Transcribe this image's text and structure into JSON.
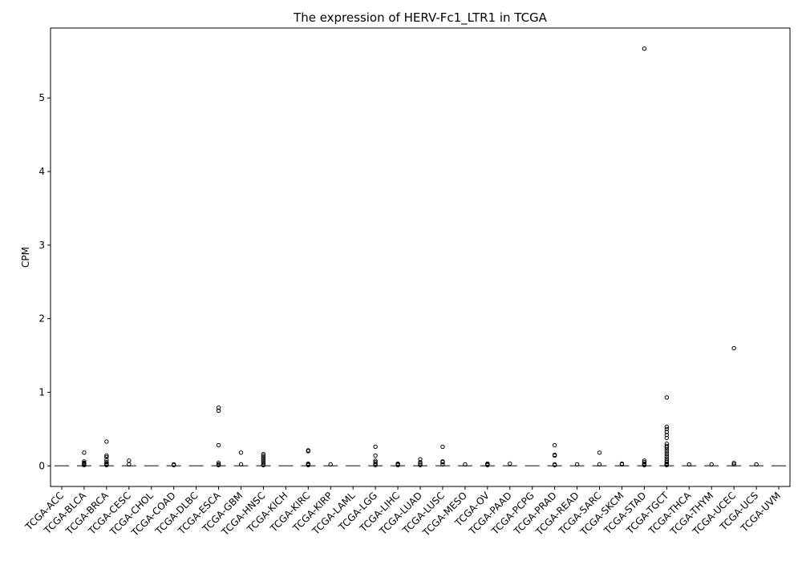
{
  "chart_data": {
    "type": "box",
    "title": "The expression of HERV-Fc1_LTR1 in TCGA",
    "xlabel": "",
    "ylabel": "CPM",
    "ylim": [
      -0.28,
      5.95
    ],
    "yticks": [
      0,
      1,
      2,
      3,
      4,
      5
    ],
    "grid": false,
    "categories": [
      "TCGA-ACC",
      "TCGA-BLCA",
      "TCGA-BRCA",
      "TCGA-CESC",
      "TCGA-CHOL",
      "TCGA-COAD",
      "TCGA-DLBC",
      "TCGA-ESCA",
      "TCGA-GBM",
      "TCGA-HNSC",
      "TCGA-KICH",
      "TCGA-KIRC",
      "TCGA-KIRP",
      "TCGA-LAML",
      "TCGA-LGG",
      "TCGA-LIHC",
      "TCGA-LUAD",
      "TCGA-LUSC",
      "TCGA-MESO",
      "TCGA-OV",
      "TCGA-PAAD",
      "TCGA-PCPG",
      "TCGA-PRAD",
      "TCGA-READ",
      "TCGA-SARC",
      "TCGA-SKCM",
      "TCGA-STAD",
      "TCGA-TGCT",
      "TCGA-THCA",
      "TCGA-THYM",
      "TCGA-UCEC",
      "TCGA-UCS",
      "TCGA-UVM"
    ],
    "median": [
      0,
      0,
      0,
      0,
      0,
      0,
      0,
      0,
      0,
      0,
      0,
      0,
      0,
      0,
      0,
      0,
      0,
      0,
      0,
      0,
      0,
      0,
      0,
      0,
      0,
      0,
      0,
      0,
      0,
      0,
      0,
      0,
      0
    ],
    "outliers": [
      [],
      [
        0.18,
        0.06,
        0.04,
        0.03,
        0.02,
        0.01
      ],
      [
        0.33,
        0.14,
        0.12,
        0.08,
        0.05,
        0.03,
        0.02,
        0.01
      ],
      [
        0.07,
        0.02
      ],
      [],
      [
        0.02,
        0.01
      ],
      [],
      [
        0.79,
        0.75,
        0.28,
        0.04,
        0.02,
        0.01
      ],
      [
        0.18,
        0.02
      ],
      [
        0.16,
        0.14,
        0.12,
        0.1,
        0.08,
        0.06,
        0.04,
        0.02,
        0.01
      ],
      [],
      [
        0.21,
        0.2,
        0.03,
        0.02,
        0.01
      ],
      [
        0.02
      ],
      [],
      [
        0.26,
        0.14,
        0.07,
        0.05,
        0.03,
        0.01
      ],
      [
        0.03,
        0.02,
        0.01
      ],
      [
        0.09,
        0.05,
        0.03,
        0.01
      ],
      [
        0.26,
        0.06,
        0.05,
        0.02
      ],
      [
        0.02
      ],
      [
        0.03,
        0.02,
        0.01
      ],
      [
        0.03
      ],
      [],
      [
        0.28,
        0.15,
        0.14,
        0.02,
        0.01
      ],
      [
        0.02
      ],
      [
        0.18,
        0.02
      ],
      [
        0.03,
        0.02
      ],
      [
        5.67,
        0.07,
        0.05,
        0.03,
        0.02,
        0.01
      ],
      [
        0.93,
        0.53,
        0.5,
        0.46,
        0.42,
        0.38,
        0.3,
        0.27,
        0.25,
        0.22,
        0.19,
        0.16,
        0.13,
        0.1,
        0.07,
        0.05,
        0.03,
        0.02,
        0.01
      ],
      [
        0.02
      ],
      [
        0.02
      ],
      [
        1.6,
        0.04,
        0.02
      ],
      [
        0.02
      ],
      []
    ]
  }
}
